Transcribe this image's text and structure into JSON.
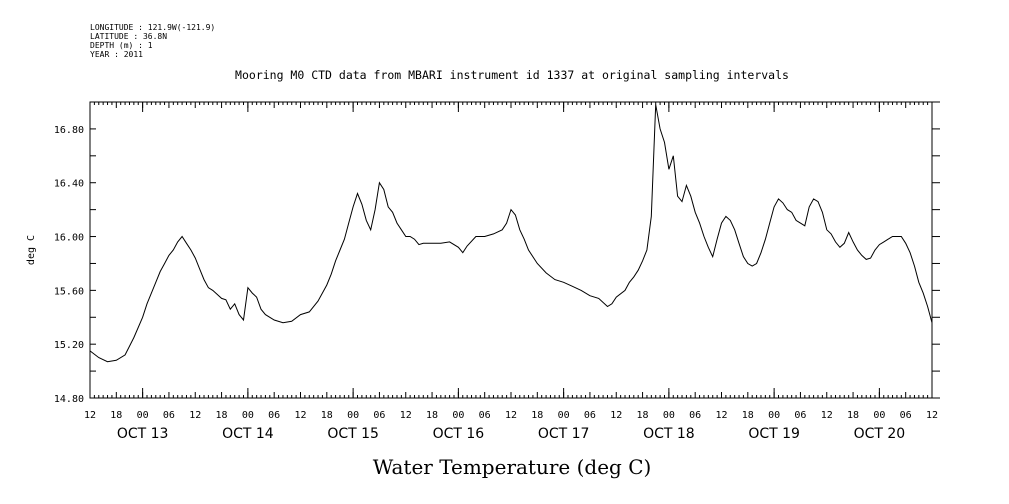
{
  "header": {
    "longitude": "LONGITUDE : 121.9W(-121.9)",
    "latitude": "LATITUDE : 36.8N",
    "depth": "DEPTH (m) : 1",
    "year": "YEAR : 2011"
  },
  "chart_data": {
    "type": "line",
    "title": "Mooring M0 CTD data from MBARI instrument id 1337 at original sampling intervals",
    "xlabel": "Water Temperature (deg C)",
    "ylabel": "deg C",
    "ylim": [
      14.8,
      17.0
    ],
    "y_ticks": [
      "14.80",
      "15.20",
      "15.60",
      "16.00",
      "16.40",
      "16.80"
    ],
    "x_hour_labels": [
      "12",
      "18",
      "00",
      "06",
      "12",
      "18",
      "00",
      "06",
      "12",
      "18",
      "00",
      "06",
      "12",
      "18",
      "00",
      "06",
      "12",
      "18",
      "00",
      "06",
      "12",
      "18",
      "00",
      "06",
      "12",
      "18",
      "00",
      "06",
      "12",
      "18",
      "00",
      "06",
      "12"
    ],
    "x_day_labels": [
      {
        "text": "OCT 13",
        "day": 1
      },
      {
        "text": "OCT 14",
        "day": 2
      },
      {
        "text": "OCT 15",
        "day": 3
      },
      {
        "text": "OCT 16",
        "day": 4
      },
      {
        "text": "OCT 17",
        "day": 5
      },
      {
        "text": "OCT 18",
        "day": 6
      },
      {
        "text": "OCT 19",
        "day": 7
      },
      {
        "text": "OCT 20",
        "day": 8
      }
    ],
    "xlim_hours": [
      12,
      204
    ],
    "grid": false,
    "series": [
      {
        "points": [
          [
            12,
            15.15
          ],
          [
            14,
            15.1
          ],
          [
            16,
            15.07
          ],
          [
            18,
            15.08
          ],
          [
            20,
            15.12
          ],
          [
            22,
            15.25
          ],
          [
            24,
            15.4
          ],
          [
            25,
            15.5
          ],
          [
            26,
            15.58
          ],
          [
            27,
            15.66
          ],
          [
            28,
            15.74
          ],
          [
            29,
            15.8
          ],
          [
            30,
            15.86
          ],
          [
            31,
            15.9
          ],
          [
            32,
            15.96
          ],
          [
            33,
            16.0
          ],
          [
            34,
            15.95
          ],
          [
            35,
            15.9
          ],
          [
            36,
            15.84
          ],
          [
            37,
            15.76
          ],
          [
            38,
            15.68
          ],
          [
            39,
            15.62
          ],
          [
            40,
            15.6
          ],
          [
            41,
            15.57
          ],
          [
            42,
            15.54
          ],
          [
            43,
            15.53
          ],
          [
            44,
            15.46
          ],
          [
            45,
            15.5
          ],
          [
            46,
            15.42
          ],
          [
            47,
            15.38
          ],
          [
            48,
            15.62
          ],
          [
            49,
            15.58
          ],
          [
            50,
            15.55
          ],
          [
            51,
            15.46
          ],
          [
            52,
            15.42
          ],
          [
            54,
            15.38
          ],
          [
            56,
            15.36
          ],
          [
            58,
            15.37
          ],
          [
            60,
            15.42
          ],
          [
            62,
            15.44
          ],
          [
            64,
            15.52
          ],
          [
            66,
            15.64
          ],
          [
            67,
            15.72
          ],
          [
            68,
            15.82
          ],
          [
            69,
            15.9
          ],
          [
            70,
            15.98
          ],
          [
            71,
            16.1
          ],
          [
            72,
            16.22
          ],
          [
            73,
            16.32
          ],
          [
            74,
            16.24
          ],
          [
            75,
            16.12
          ],
          [
            76,
            16.05
          ],
          [
            77,
            16.2
          ],
          [
            78,
            16.4
          ],
          [
            79,
            16.35
          ],
          [
            80,
            16.22
          ],
          [
            81,
            16.18
          ],
          [
            82,
            16.1
          ],
          [
            83,
            16.05
          ],
          [
            84,
            16.0
          ],
          [
            85,
            16.0
          ],
          [
            86,
            15.98
          ],
          [
            87,
            15.94
          ],
          [
            88,
            15.95
          ],
          [
            90,
            15.95
          ],
          [
            92,
            15.95
          ],
          [
            94,
            15.96
          ],
          [
            96,
            15.92
          ],
          [
            97,
            15.88
          ],
          [
            98,
            15.93
          ],
          [
            100,
            16.0
          ],
          [
            102,
            16.0
          ],
          [
            104,
            16.02
          ],
          [
            106,
            16.05
          ],
          [
            107,
            16.1
          ],
          [
            108,
            16.2
          ],
          [
            109,
            16.16
          ],
          [
            110,
            16.05
          ],
          [
            111,
            15.98
          ],
          [
            112,
            15.9
          ],
          [
            114,
            15.8
          ],
          [
            116,
            15.73
          ],
          [
            118,
            15.68
          ],
          [
            120,
            15.66
          ],
          [
            122,
            15.63
          ],
          [
            124,
            15.6
          ],
          [
            126,
            15.56
          ],
          [
            128,
            15.54
          ],
          [
            130,
            15.48
          ],
          [
            131,
            15.5
          ],
          [
            132,
            15.55
          ],
          [
            134,
            15.6
          ],
          [
            135,
            15.66
          ],
          [
            136,
            15.7
          ],
          [
            137,
            15.75
          ],
          [
            138,
            15.82
          ],
          [
            139,
            15.9
          ],
          [
            140,
            16.15
          ],
          [
            141,
            16.98
          ],
          [
            142,
            16.8
          ],
          [
            143,
            16.7
          ],
          [
            144,
            16.5
          ],
          [
            145,
            16.6
          ],
          [
            146,
            16.3
          ],
          [
            147,
            16.26
          ],
          [
            148,
            16.38
          ],
          [
            149,
            16.3
          ],
          [
            150,
            16.18
          ],
          [
            151,
            16.1
          ],
          [
            152,
            16.0
          ],
          [
            153,
            15.92
          ],
          [
            154,
            15.85
          ],
          [
            155,
            15.98
          ],
          [
            156,
            16.1
          ],
          [
            157,
            16.15
          ],
          [
            158,
            16.12
          ],
          [
            159,
            16.05
          ],
          [
            160,
            15.95
          ],
          [
            161,
            15.85
          ],
          [
            162,
            15.8
          ],
          [
            163,
            15.78
          ],
          [
            164,
            15.8
          ],
          [
            165,
            15.88
          ],
          [
            166,
            15.98
          ],
          [
            167,
            16.1
          ],
          [
            168,
            16.22
          ],
          [
            169,
            16.28
          ],
          [
            170,
            16.25
          ],
          [
            171,
            16.2
          ],
          [
            172,
            16.18
          ],
          [
            173,
            16.12
          ],
          [
            174,
            16.1
          ],
          [
            175,
            16.08
          ],
          [
            176,
            16.22
          ],
          [
            177,
            16.28
          ],
          [
            178,
            16.26
          ],
          [
            179,
            16.18
          ],
          [
            180,
            16.05
          ],
          [
            181,
            16.02
          ],
          [
            182,
            15.96
          ],
          [
            183,
            15.92
          ],
          [
            184,
            15.95
          ],
          [
            185,
            16.03
          ],
          [
            186,
            15.96
          ],
          [
            187,
            15.9
          ],
          [
            188,
            15.86
          ],
          [
            189,
            15.83
          ],
          [
            190,
            15.84
          ],
          [
            191,
            15.9
          ],
          [
            192,
            15.94
          ],
          [
            193,
            15.96
          ],
          [
            194,
            15.98
          ],
          [
            195,
            16.0
          ],
          [
            196,
            16.0
          ],
          [
            197,
            16.0
          ],
          [
            198,
            15.95
          ],
          [
            199,
            15.88
          ],
          [
            200,
            15.78
          ],
          [
            201,
            15.66
          ],
          [
            202,
            15.58
          ],
          [
            203,
            15.48
          ],
          [
            204,
            15.36
          ]
        ]
      }
    ]
  }
}
